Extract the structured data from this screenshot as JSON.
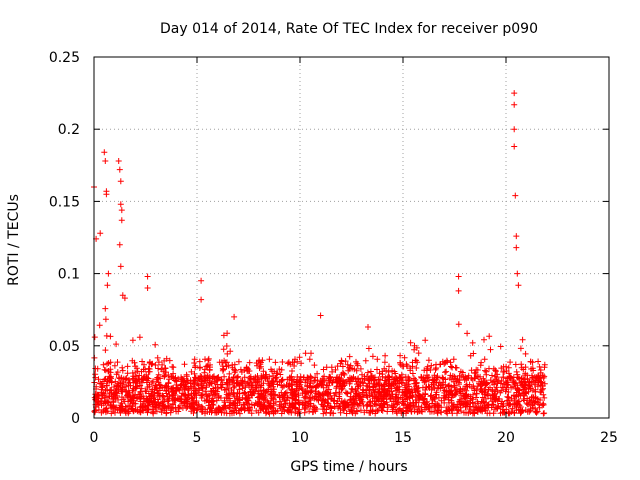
{
  "chart_data": {
    "type": "scatter",
    "title": "Day 014 of 2014, Rate Of TEC Index for receiver p090",
    "xlabel": "GPS time / hours",
    "ylabel": "ROTI / TECUs",
    "xlim": [
      0,
      25
    ],
    "ylim": [
      0,
      0.25
    ],
    "x_ticks": [
      0,
      5,
      10,
      15,
      20,
      25
    ],
    "x_tick_labels": [
      "0",
      "5",
      "10",
      "15",
      "20",
      "25"
    ],
    "y_ticks": [
      0,
      0.05,
      0.1,
      0.15,
      0.2,
      0.25
    ],
    "y_tick_labels": [
      "0",
      "0.05",
      "0.1",
      "0.15",
      "0.2",
      "0.25"
    ],
    "grid": true,
    "marker": "+",
    "marker_color": "#ff0000",
    "data_range_hours": [
      0,
      21.9
    ],
    "background_band": [
      0.003,
      0.04
    ],
    "peaks": [
      {
        "x": 0.0,
        "y": 0.16
      },
      {
        "x": 0.1,
        "y": 0.124
      },
      {
        "x": 0.3,
        "y": 0.128
      },
      {
        "x": 0.5,
        "y": 0.184
      },
      {
        "x": 0.55,
        "y": 0.178
      },
      {
        "x": 0.6,
        "y": 0.157
      },
      {
        "x": 0.6,
        "y": 0.155
      },
      {
        "x": 0.65,
        "y": 0.092
      },
      {
        "x": 0.7,
        "y": 0.1
      },
      {
        "x": 1.2,
        "y": 0.178
      },
      {
        "x": 1.25,
        "y": 0.172
      },
      {
        "x": 1.3,
        "y": 0.164
      },
      {
        "x": 1.3,
        "y": 0.148
      },
      {
        "x": 1.35,
        "y": 0.144
      },
      {
        "x": 1.35,
        "y": 0.137
      },
      {
        "x": 1.25,
        "y": 0.12
      },
      {
        "x": 1.3,
        "y": 0.105
      },
      {
        "x": 1.4,
        "y": 0.085
      },
      {
        "x": 1.5,
        "y": 0.083
      },
      {
        "x": 2.6,
        "y": 0.098
      },
      {
        "x": 2.6,
        "y": 0.09
      },
      {
        "x": 5.2,
        "y": 0.095
      },
      {
        "x": 5.2,
        "y": 0.082
      },
      {
        "x": 6.8,
        "y": 0.07
      },
      {
        "x": 11.0,
        "y": 0.071
      },
      {
        "x": 13.3,
        "y": 0.063
      },
      {
        "x": 17.7,
        "y": 0.098
      },
      {
        "x": 17.7,
        "y": 0.088
      },
      {
        "x": 20.4,
        "y": 0.225
      },
      {
        "x": 20.4,
        "y": 0.217
      },
      {
        "x": 20.4,
        "y": 0.2
      },
      {
        "x": 20.4,
        "y": 0.188
      },
      {
        "x": 20.45,
        "y": 0.154
      },
      {
        "x": 20.5,
        "y": 0.126
      },
      {
        "x": 20.5,
        "y": 0.118
      },
      {
        "x": 20.55,
        "y": 0.1
      },
      {
        "x": 20.6,
        "y": 0.092
      }
    ],
    "envelope": [
      [
        0.0,
        0.06
      ],
      [
        0.5,
        0.09
      ],
      [
        1.0,
        0.07
      ],
      [
        1.5,
        0.06
      ],
      [
        2.0,
        0.055
      ],
      [
        2.5,
        0.07
      ],
      [
        3.0,
        0.05
      ],
      [
        3.5,
        0.045
      ],
      [
        4.0,
        0.035
      ],
      [
        4.5,
        0.03
      ],
      [
        5.0,
        0.05
      ],
      [
        5.5,
        0.045
      ],
      [
        6.0,
        0.055
      ],
      [
        6.5,
        0.06
      ],
      [
        7.0,
        0.05
      ],
      [
        7.5,
        0.035
      ],
      [
        8.0,
        0.04
      ],
      [
        8.5,
        0.048
      ],
      [
        9.0,
        0.038
      ],
      [
        9.5,
        0.042
      ],
      [
        10.0,
        0.048
      ],
      [
        10.5,
        0.045
      ],
      [
        11.0,
        0.065
      ],
      [
        11.5,
        0.04
      ],
      [
        12.0,
        0.038
      ],
      [
        12.5,
        0.048
      ],
      [
        13.0,
        0.045
      ],
      [
        13.5,
        0.055
      ],
      [
        14.0,
        0.045
      ],
      [
        14.5,
        0.04
      ],
      [
        15.0,
        0.05
      ],
      [
        15.5,
        0.055
      ],
      [
        16.0,
        0.06
      ],
      [
        16.5,
        0.05
      ],
      [
        17.0,
        0.045
      ],
      [
        17.5,
        0.07
      ],
      [
        18.0,
        0.06
      ],
      [
        18.5,
        0.055
      ],
      [
        19.0,
        0.06
      ],
      [
        19.5,
        0.055
      ],
      [
        20.0,
        0.06
      ],
      [
        20.5,
        0.07
      ],
      [
        21.0,
        0.05
      ],
      [
        21.5,
        0.045
      ],
      [
        21.9,
        0.045
      ]
    ]
  }
}
